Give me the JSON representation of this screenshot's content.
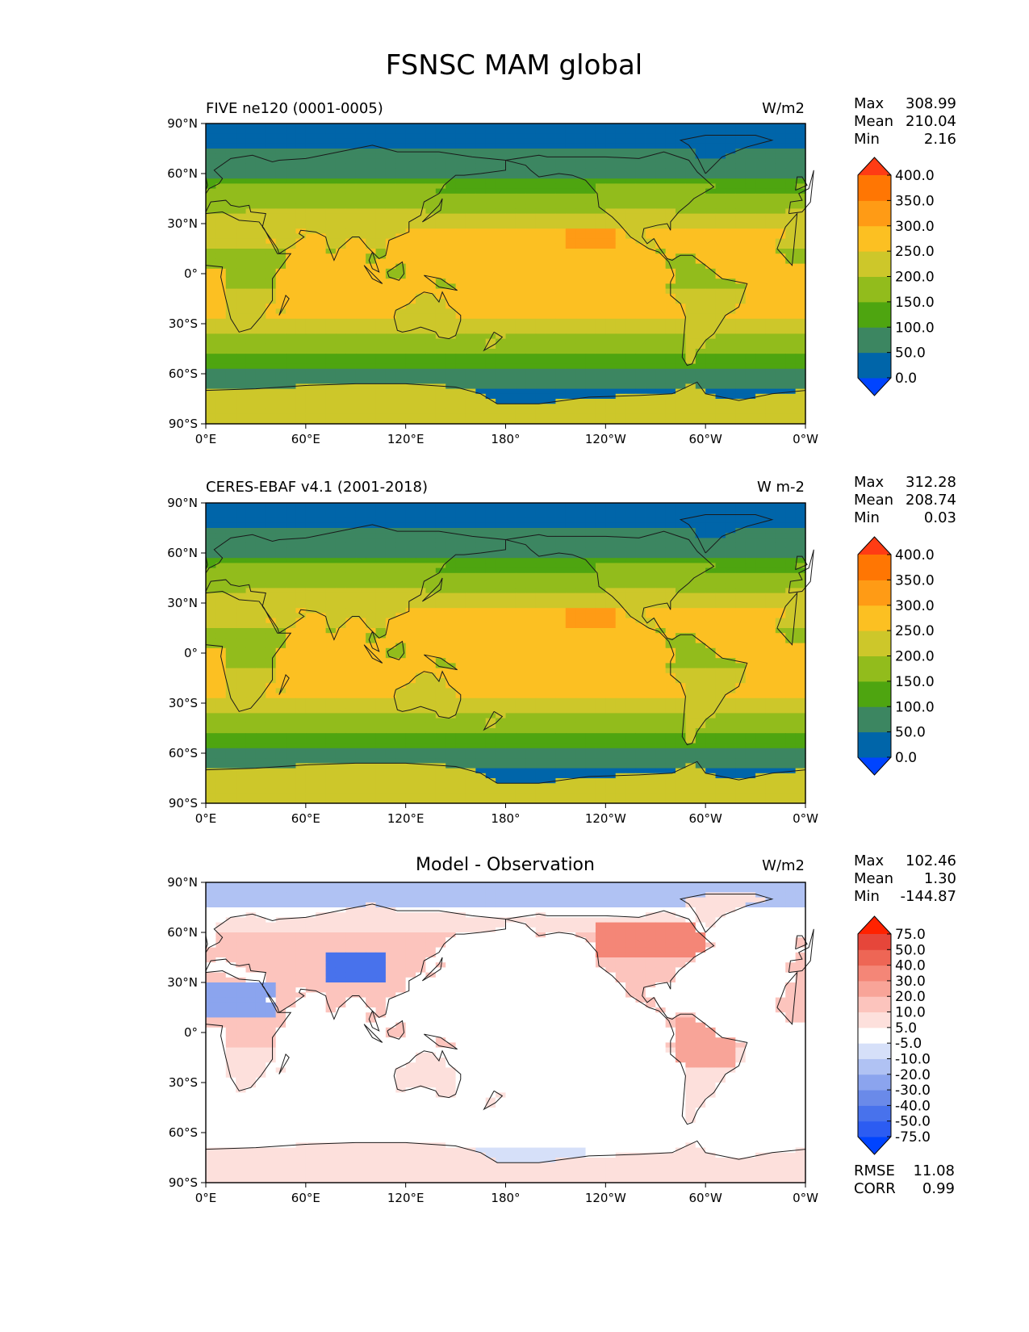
{
  "figure": {
    "title": "FSNSC MAM global"
  },
  "colors": {
    "main_levels": [
      "#0044ff",
      "#0065a9",
      "#3c8661",
      "#4ea510",
      "#92bc1c",
      "#cdc72a",
      "#fcc022",
      "#ff9b15",
      "#ff7603",
      "#ff3c14"
    ],
    "diff_levels": [
      "#0044ff",
      "#2c5cf2",
      "#4872ec",
      "#6a8ae9",
      "#8ba4ee",
      "#b0c2f3",
      "#d6e0f9",
      "#ffffff",
      "#fde0dc",
      "#fcc4bd",
      "#f8a498",
      "#f48677",
      "#ee6655",
      "#e6463a",
      "#ff2200"
    ],
    "coastline": "#1a1a1a"
  },
  "chart_data": [
    {
      "type": "heatmap",
      "title": "FIVE ne120 (0001-0005)",
      "units": "W/m2",
      "stats": {
        "max_label": "Max",
        "max": "308.99",
        "mean_label": "Mean",
        "mean": "210.04",
        "min_label": "Min",
        "min": "2.16"
      },
      "colorbar_ticks": [
        "0.0",
        "50.0",
        "100.0",
        "150.0",
        "200.0",
        "250.0",
        "300.0",
        "350.0",
        "400.0"
      ],
      "lat_ticks": [
        "90°N",
        "60°N",
        "30°N",
        "0°",
        "30°S",
        "60°S",
        "90°S"
      ],
      "lon_ticks": [
        "0°E",
        "60°E",
        "120°E",
        "180°",
        "120°W",
        "60°W",
        "0°W"
      ],
      "xlim": [
        0,
        360
      ],
      "ylim": [
        -90,
        90
      ]
    },
    {
      "type": "heatmap",
      "title": "CERES-EBAF v4.1 (2001-2018)",
      "units": "W m-2",
      "stats": {
        "max_label": "Max",
        "max": "312.28",
        "mean_label": "Mean",
        "mean": "208.74",
        "min_label": "Min",
        "min": "0.03"
      },
      "colorbar_ticks": [
        "0.0",
        "50.0",
        "100.0",
        "150.0",
        "200.0",
        "250.0",
        "300.0",
        "350.0",
        "400.0"
      ],
      "lat_ticks": [
        "90°N",
        "60°N",
        "30°N",
        "0°",
        "30°S",
        "60°S",
        "90°S"
      ],
      "lon_ticks": [
        "0°E",
        "60°E",
        "120°E",
        "180°",
        "120°W",
        "60°W",
        "0°W"
      ],
      "xlim": [
        0,
        360
      ],
      "ylim": [
        -90,
        90
      ]
    },
    {
      "type": "heatmap",
      "title": "Model - Observation",
      "units": "W/m2",
      "stats": {
        "max_label": "Max",
        "max": "102.46",
        "mean_label": "Mean",
        "mean": "1.30",
        "min_label": "Min",
        "min": "-144.87"
      },
      "extra_stats": {
        "rmse_label": "RMSE",
        "rmse": "11.08",
        "corr_label": "CORR",
        "corr": "0.99"
      },
      "colorbar_ticks": [
        "-75.0",
        "-50.0",
        "-40.0",
        "-30.0",
        "-20.0",
        "-10.0",
        "-5.0",
        "5.0",
        "10.0",
        "20.0",
        "30.0",
        "40.0",
        "50.0",
        "75.0"
      ],
      "lat_ticks": [
        "90°N",
        "60°N",
        "30°N",
        "0°",
        "30°S",
        "60°S",
        "90°S"
      ],
      "lon_ticks": [
        "0°E",
        "60°E",
        "120°E",
        "180°",
        "120°W",
        "60°W",
        "0°W"
      ],
      "xlim": [
        0,
        360
      ],
      "ylim": [
        -90,
        90
      ]
    }
  ]
}
